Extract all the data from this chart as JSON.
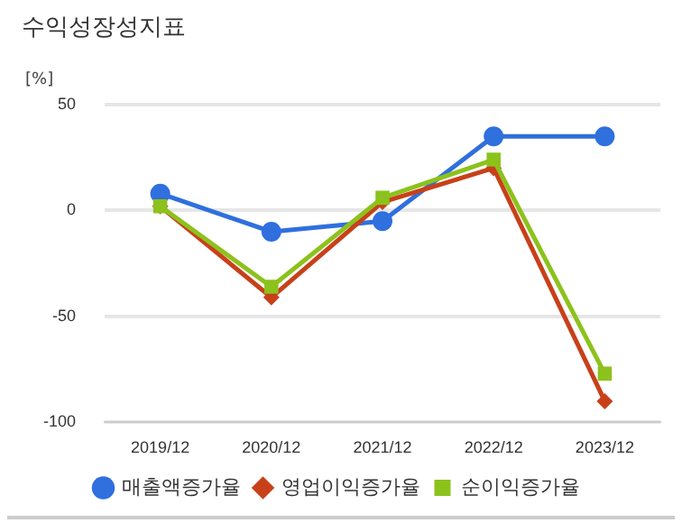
{
  "chart_data": {
    "type": "line",
    "title": "수익성장성지표",
    "ylabel": "[%]",
    "categories": [
      "2019/12",
      "2020/12",
      "2021/12",
      "2022/12",
      "2023/12"
    ],
    "series": [
      {
        "name": "매출액증가율",
        "color": "#2f6fde",
        "marker": "circle",
        "values": [
          8,
          -10,
          -5,
          35,
          35
        ]
      },
      {
        "name": "영업이익증가율",
        "color": "#c8401a",
        "marker": "diamond",
        "values": [
          2,
          -41,
          4,
          20,
          -90
        ]
      },
      {
        "name": "순이익증가율",
        "color": "#8cc21c",
        "marker": "square",
        "values": [
          2,
          -36,
          6,
          24,
          -77
        ]
      }
    ],
    "ylim": [
      -100,
      50
    ],
    "yticks": [
      -100,
      -50,
      0,
      50
    ],
    "grid": "y",
    "legend": "bottom",
    "line_style": "solid"
  }
}
